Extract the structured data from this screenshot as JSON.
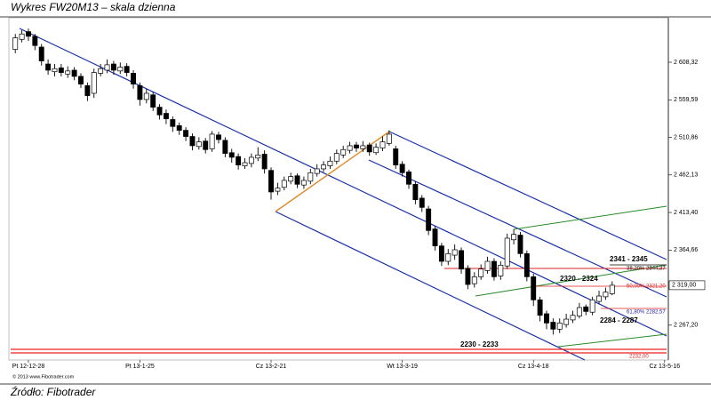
{
  "chart_data": {
    "type": "candlestick",
    "title": "Wykres FW20M13 – skala dzienna",
    "source": "Źródło: Fibotrader",
    "copyright": "© 2013 www.Fibotrader.com",
    "categories": [
      null,
      null,
      "Pt 12-12-28",
      null,
      null,
      null,
      null,
      null,
      null,
      null,
      null,
      null,
      null,
      null,
      null,
      null,
      null,
      null,
      null,
      "Pt 13-1-25",
      null,
      null,
      null,
      null,
      null,
      null,
      null,
      null,
      null,
      null,
      null,
      null,
      null,
      null,
      null,
      null,
      null,
      null,
      null,
      "Cz 13-2-21",
      null,
      null,
      null,
      null,
      null,
      null,
      null,
      null,
      null,
      null,
      null,
      null,
      null,
      null,
      null,
      null,
      null,
      null,
      null,
      "Wt 13-3-19",
      null,
      null,
      null,
      null,
      null,
      null,
      null,
      null,
      null,
      null,
      null,
      null,
      null,
      null,
      null,
      null,
      null,
      null,
      null,
      "Cz 13-4-18",
      null,
      null,
      null,
      null,
      null,
      null,
      null,
      null,
      null,
      null,
      null,
      null,
      null,
      null,
      null,
      null,
      null,
      null,
      null,
      "Cz 13-5-16"
    ],
    "open": [
      2625,
      2638,
      2648,
      2642,
      2628,
      2606,
      2596,
      2601,
      2593,
      2598,
      2590,
      2578,
      2568,
      2594,
      2598,
      2606,
      2597,
      2603,
      2594,
      2578,
      2560,
      2566,
      2550,
      2542,
      2534,
      2526,
      2520,
      2512,
      2499,
      2506,
      2496,
      2514,
      2507,
      2491,
      2486,
      2474,
      2477,
      2484,
      2489,
      2468,
      2441,
      2446,
      2454,
      2461,
      2449,
      2454,
      2464,
      2470,
      2474,
      2480,
      2488,
      2494,
      2501,
      2496,
      2501,
      2491,
      2497,
      2503,
      2496,
      2476,
      2466,
      2450,
      2432,
      2418,
      2392,
      2370,
      2350,
      2358,
      2364,
      2341,
      2321,
      2330,
      2338,
      2350,
      2331,
      2344,
      2378,
      2384,
      2360,
      2330,
      2300,
      2282,
      2271,
      2262,
      2268,
      2274,
      2279,
      2291,
      2284,
      2298,
      2304,
      2308,
      null,
      null,
      null,
      null,
      null,
      null,
      null,
      null
    ],
    "high": [
      2645,
      2650,
      2652,
      2645,
      2632,
      2612,
      2606,
      2606,
      2603,
      2602,
      2594,
      2582,
      2600,
      2606,
      2612,
      2610,
      2608,
      2607,
      2598,
      2582,
      2574,
      2570,
      2554,
      2547,
      2538,
      2530,
      2524,
      2516,
      2511,
      2510,
      2519,
      2518,
      2511,
      2496,
      2490,
      2484,
      2490,
      2498,
      2494,
      2472,
      2452,
      2460,
      2465,
      2464,
      2460,
      2470,
      2476,
      2480,
      2486,
      2495,
      2500,
      2505,
      2505,
      2506,
      2504,
      2503,
      2512,
      2520,
      2500,
      2480,
      2469,
      2454,
      2436,
      2422,
      2396,
      2374,
      2366,
      2372,
      2368,
      2345,
      2336,
      2346,
      2356,
      2354,
      2350,
      2386,
      2392,
      2388,
      2364,
      2334,
      2304,
      2286,
      2276,
      2276,
      2282,
      2286,
      2296,
      2294,
      2304,
      2312,
      2316,
      2324,
      null,
      null,
      null,
      null,
      null,
      null,
      null,
      null
    ],
    "low": [
      2620,
      2634,
      2636,
      2624,
      2604,
      2592,
      2590,
      2590,
      2588,
      2585,
      2575,
      2558,
      2562,
      2590,
      2594,
      2592,
      2593,
      2590,
      2574,
      2552,
      2555,
      2545,
      2534,
      2528,
      2518,
      2514,
      2506,
      2494,
      2495,
      2490,
      2492,
      2503,
      2485,
      2478,
      2469,
      2470,
      2472,
      2480,
      2464,
      2430,
      2436,
      2442,
      2450,
      2445,
      2444,
      2450,
      2460,
      2466,
      2470,
      2476,
      2484,
      2490,
      2492,
      2492,
      2487,
      2488,
      2493,
      2500,
      2470,
      2460,
      2444,
      2424,
      2414,
      2384,
      2364,
      2344,
      2345,
      2352,
      2334,
      2314,
      2316,
      2326,
      2334,
      2325,
      2326,
      2340,
      2372,
      2355,
      2324,
      2292,
      2272,
      2262,
      2255,
      2257,
      2264,
      2270,
      2276,
      2280,
      2280,
      2295,
      2300,
      2306,
      null,
      null,
      null,
      null,
      null,
      null,
      null,
      null
    ],
    "close": [
      2640,
      2645,
      2642,
      2630,
      2610,
      2598,
      2600,
      2595,
      2597,
      2590,
      2580,
      2565,
      2595,
      2600,
      2605,
      2598,
      2602,
      2595,
      2580,
      2560,
      2568,
      2550,
      2540,
      2535,
      2525,
      2520,
      2512,
      2500,
      2505,
      2495,
      2515,
      2508,
      2490,
      2485,
      2475,
      2478,
      2485,
      2488,
      2470,
      2440,
      2445,
      2455,
      2460,
      2450,
      2455,
      2465,
      2470,
      2475,
      2480,
      2490,
      2495,
      2500,
      2497,
      2500,
      2492,
      2498,
      2505,
      2515,
      2475,
      2465,
      2450,
      2430,
      2420,
      2390,
      2370,
      2350,
      2360,
      2365,
      2340,
      2320,
      2330,
      2340,
      2350,
      2330,
      2345,
      2380,
      2385,
      2360,
      2330,
      2300,
      2280,
      2270,
      2262,
      2270,
      2275,
      2280,
      2290,
      2285,
      2300,
      2305,
      2310,
      2319,
      null,
      null,
      null,
      null,
      null,
      null,
      null,
      null
    ],
    "ylim": [
      2222,
      2666
    ],
    "yticks": [
      {
        "value": 2608.32,
        "label": "2 608,32"
      },
      {
        "value": 2559.59,
        "label": "2 559,59"
      },
      {
        "value": 2510.86,
        "label": "2 510,86"
      },
      {
        "value": 2462.13,
        "label": "2 462,13"
      },
      {
        "value": 2413.4,
        "label": "2 413,40"
      },
      {
        "value": 2364.66,
        "label": "2 364,66"
      },
      {
        "value": 2267.2,
        "label": "2 267,20"
      }
    ],
    "last_price": {
      "value": 2319,
      "label": "2 319,00"
    },
    "annotations": [
      "2341 - 2345",
      "38,20% 2344,37",
      "2320 - 2324",
      "50,00% 2321,20",
      "61,80% 2282,57",
      "2284 - 2287",
      "2230 - 2233",
      "2232,00"
    ]
  }
}
